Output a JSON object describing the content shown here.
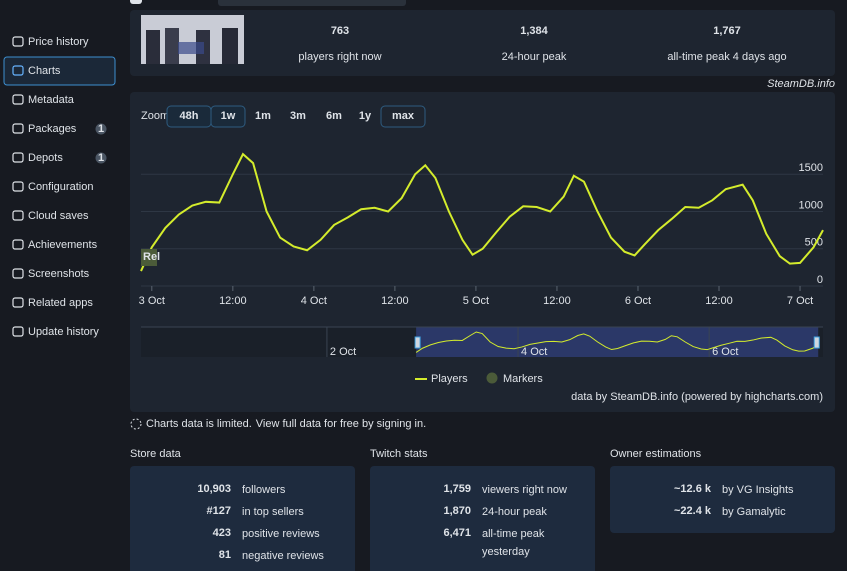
{
  "sidebar": {
    "items": [
      {
        "label": "Price history"
      },
      {
        "label": "Charts",
        "active": true
      },
      {
        "label": "Metadata"
      },
      {
        "label": "Packages",
        "badge": 1
      },
      {
        "label": "Depots",
        "badge": 1
      },
      {
        "label": "Configuration"
      },
      {
        "label": "Cloud saves"
      },
      {
        "label": "Achievements"
      },
      {
        "label": "Screenshots"
      },
      {
        "label": "Related apps"
      },
      {
        "label": "Update history"
      }
    ]
  },
  "header_stats": [
    {
      "value": "763",
      "label": "players right now"
    },
    {
      "value": "1,384",
      "label": "24-hour peak"
    },
    {
      "value": "1,767",
      "label": "all-time peak 4 days ago"
    }
  ],
  "watermark": "SteamDB.info",
  "chart_data": {
    "type": "line",
    "zoom_label": "Zoom",
    "zoom_buttons": [
      {
        "label": "48h",
        "enabled": true
      },
      {
        "label": "1w",
        "enabled": true
      },
      {
        "label": "1m",
        "enabled": false
      },
      {
        "label": "3m",
        "enabled": false
      },
      {
        "label": "6m",
        "enabled": false
      },
      {
        "label": "1y",
        "enabled": false
      },
      {
        "label": "max",
        "enabled": true,
        "selected": true
      }
    ],
    "x": [
      -1.6,
      0,
      2,
      4,
      6,
      8,
      10,
      12,
      13.5,
      15,
      17,
      19,
      21,
      23,
      25,
      27,
      29,
      31,
      33,
      35,
      37,
      39,
      40.5,
      42,
      44,
      46,
      47.5,
      49,
      51,
      53,
      55,
      57,
      59,
      61,
      62.5,
      64,
      66,
      68,
      70,
      71.5,
      73,
      75,
      77,
      79,
      81,
      83,
      85,
      87.5,
      89,
      91,
      93,
      94.5,
      96,
      98,
      99.4
    ],
    "series": [
      {
        "name": "Players",
        "color": "#d4ec2c",
        "values": [
          200,
          520,
          780,
          960,
          1080,
          1130,
          1120,
          1500,
          1770,
          1650,
          1000,
          650,
          530,
          480,
          620,
          820,
          920,
          1030,
          1050,
          1000,
          1180,
          1500,
          1620,
          1450,
          1000,
          620,
          420,
          500,
          720,
          930,
          1070,
          1060,
          1000,
          1200,
          1480,
          1400,
          1000,
          650,
          460,
          410,
          560,
          750,
          900,
          1060,
          1050,
          1150,
          1300,
          1360,
          1150,
          700,
          400,
          300,
          310,
          520,
          750
        ]
      }
    ],
    "markers_legend": {
      "name": "Markers",
      "color": "#4b5b39"
    },
    "markers": [
      {
        "x": -1.6,
        "label": "Rel"
      }
    ],
    "xlim": [
      -1.6,
      99.4
    ],
    "ylim": [
      0,
      2000
    ],
    "xticks": [
      {
        "value": 0,
        "label": "3 Oct"
      },
      {
        "value": 12,
        "label": "12:00"
      },
      {
        "value": 24,
        "label": "4 Oct"
      },
      {
        "value": 36,
        "label": "12:00"
      },
      {
        "value": 48,
        "label": "5 Oct"
      },
      {
        "value": 60,
        "label": "12:00"
      },
      {
        "value": 72,
        "label": "6 Oct"
      },
      {
        "value": 84,
        "label": "12:00"
      },
      {
        "value": 96,
        "label": "7 Oct"
      }
    ],
    "yticks": [
      0,
      500,
      1000,
      1500
    ],
    "grid": true,
    "navigator": {
      "xlim": [
        -70.7,
        100.6
      ],
      "xticks": [
        {
          "value": -24,
          "label": "2 Oct"
        },
        {
          "value": 24,
          "label": "4 Oct"
        },
        {
          "value": 72,
          "label": "6 Oct"
        }
      ]
    },
    "credit": "data by SteamDB.info (powered by highcharts.com)"
  },
  "limited_note": {
    "text": "Charts data is limited.",
    "link": "View full data for free by signing in."
  },
  "panels": [
    {
      "title": "Store data",
      "rows": [
        {
          "value": "10,903",
          "label": "followers"
        },
        {
          "value": "#127",
          "label": "in top sellers"
        },
        {
          "value": "423",
          "label": "positive reviews"
        },
        {
          "value": "81",
          "label": "negative reviews"
        }
      ]
    },
    {
      "title": "Twitch stats",
      "rows": [
        {
          "value": "1,759",
          "label": "viewers right now"
        },
        {
          "value": "1,870",
          "label": "24-hour peak"
        },
        {
          "value": "6,471",
          "label": "all-time peak",
          "sub": "yesterday"
        }
      ]
    },
    {
      "title": "Owner estimations",
      "rows": [
        {
          "value": "~12.6 k",
          "label": "by VG Insights"
        },
        {
          "value": "~22.4 k",
          "label": "by Gamalytic"
        }
      ]
    }
  ]
}
